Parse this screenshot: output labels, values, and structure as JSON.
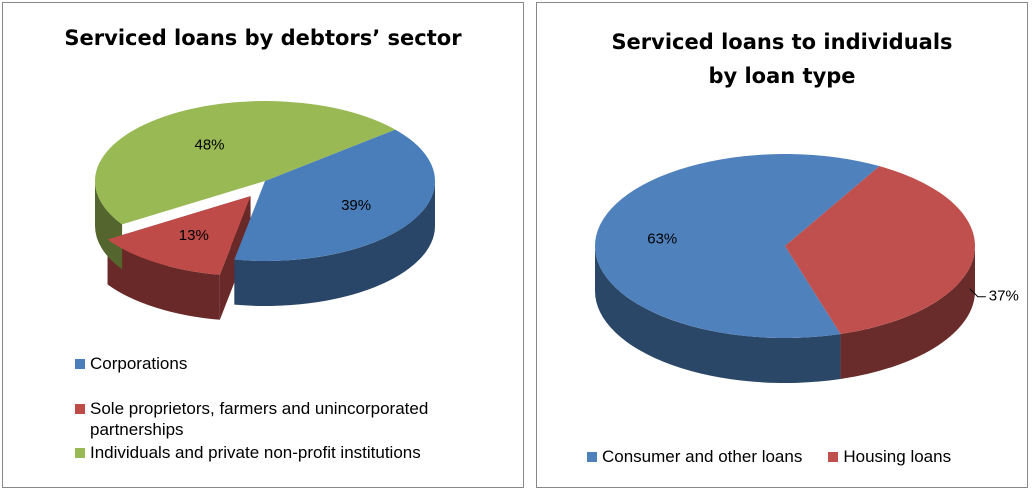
{
  "chart_data": [
    {
      "type": "pie3d",
      "title": "Serviced loans by debtors’ sector",
      "categories": [
        "Corporations",
        "Sole proprietors, farmers and unincorporated partnerships",
        "Individuals and private non-profit institutions"
      ],
      "values": [
        39,
        13,
        48
      ],
      "value_labels": [
        "39%",
        "13%",
        "48%"
      ],
      "colors": [
        "#4a7ebb",
        "#be4b48",
        "#98b954"
      ],
      "explode": [
        false,
        true,
        false
      ],
      "legend": "bottom"
    },
    {
      "type": "pie3d",
      "title": "Serviced loans to individuals by loan type",
      "categories": [
        "Consumer and other loans",
        "Housing loans"
      ],
      "values": [
        63,
        37
      ],
      "value_labels": [
        "63%",
        "37%"
      ],
      "colors": [
        "#4f81bd",
        "#c0504d"
      ],
      "explode": [
        false,
        false
      ],
      "legend": "bottom"
    }
  ]
}
